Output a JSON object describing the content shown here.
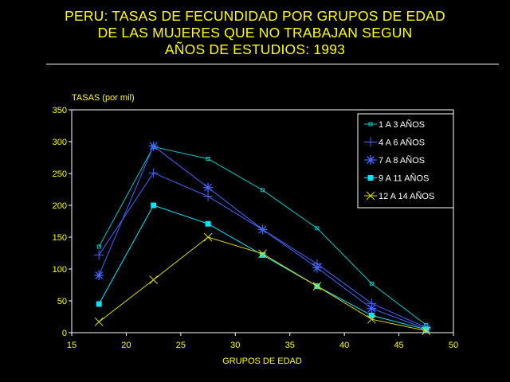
{
  "title": {
    "line1": "PERU: TASAS DE FECUNDIDAD POR GRUPOS DE EDAD",
    "line2": "DE LAS MUJERES QUE NO TRABAJAN SEGUN",
    "line3": "AÑOS DE ESTUDIOS: 1993"
  },
  "colors": {
    "background": "#000000",
    "title": "#ffff00",
    "axis": "#ffffff",
    "tick_labels": "#ffff00",
    "legend_text": "#ffffff"
  },
  "chart_data": {
    "type": "line",
    "xlabel": "GRUPOS DE EDAD",
    "ylabel": "TASAS (por mil)",
    "xlim": [
      15,
      50
    ],
    "ylim": [
      0,
      350
    ],
    "xticks": [
      15,
      20,
      25,
      30,
      35,
      40,
      45,
      50
    ],
    "yticks": [
      0,
      50,
      100,
      150,
      200,
      250,
      300,
      350
    ],
    "grid": false,
    "legend_position": "top-right",
    "x": [
      17.5,
      22.5,
      27.5,
      32.5,
      37.5,
      42.5,
      47.5
    ],
    "series": [
      {
        "name": "1 A 3 AÑOS",
        "color": "#00cccc",
        "marker": "small-square",
        "values": [
          135,
          292,
          273,
          224,
          164,
          77,
          12
        ]
      },
      {
        "name": "4 A 6 AÑOS",
        "color": "#4466ff",
        "marker": "plus",
        "values": [
          122,
          251,
          214,
          162,
          108,
          46,
          8
        ]
      },
      {
        "name": "7 A 8 AÑOS",
        "color": "#4466ff",
        "marker": "asterisk",
        "values": [
          90,
          293,
          228,
          162,
          102,
          38,
          6
        ]
      },
      {
        "name": "9 A 11  AÑOS",
        "color": "#00e5ff",
        "marker": "filled-square",
        "values": [
          45,
          200,
          171,
          122,
          73,
          27,
          5
        ]
      },
      {
        "name": "12 A  14 AÑOS",
        "color": "#dddd00",
        "marker": "x",
        "values": [
          17,
          83,
          150,
          124,
          73,
          21,
          3
        ]
      }
    ]
  }
}
